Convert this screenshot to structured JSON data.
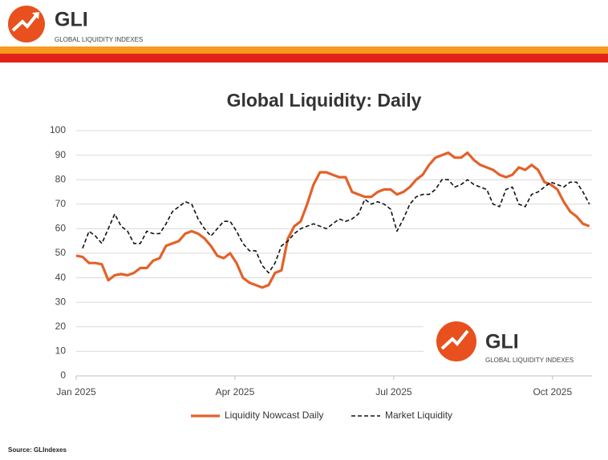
{
  "header": {
    "logo": "GLI",
    "tagline": "GLOBAL LIQUIDITY INDEXES"
  },
  "chart_data": {
    "type": "line",
    "title": "Global Liquidity: Daily",
    "xlim": [
      0,
      80.4
    ],
    "xticks": [
      {
        "value": 0,
        "label": "Jan 2025"
      },
      {
        "value": 24.75,
        "label": "Apr 2025"
      },
      {
        "value": 49.5,
        "label": "Jul 2025"
      },
      {
        "value": 74.25,
        "label": "Oct 2025"
      }
    ],
    "ylim": [
      0,
      100
    ],
    "yticks": [
      0,
      10,
      20,
      30,
      40,
      50,
      60,
      70,
      80,
      90,
      100
    ],
    "grid": true,
    "legend": "bottom",
    "series": [
      {
        "name": "Liquidity Nowcast Daily",
        "color": "#e2622a",
        "dash": false,
        "values": [
          49,
          48.5,
          46,
          46,
          45.5,
          39,
          41,
          41.5,
          41,
          42,
          44,
          44,
          47,
          48,
          53,
          54,
          55,
          58,
          59,
          58,
          56,
          53,
          49,
          48,
          50,
          46,
          40,
          38,
          37,
          36,
          37,
          42,
          43,
          56,
          61,
          63,
          70,
          78,
          83,
          83,
          82,
          81,
          81,
          75,
          74,
          73,
          73,
          75,
          76,
          76,
          74,
          75,
          77,
          80,
          82,
          86,
          89,
          90,
          91,
          89,
          89,
          91,
          88,
          86,
          85,
          84,
          82,
          81,
          82,
          85,
          84,
          86,
          84,
          79,
          78,
          76,
          71,
          67,
          65,
          62,
          61
        ]
      },
      {
        "name": "Market Liquidity",
        "color": "#111111",
        "dash": true,
        "values": [
          null,
          52,
          59,
          57,
          54,
          60,
          66,
          61,
          59,
          54,
          54,
          59,
          58,
          58,
          62,
          67,
          69,
          71,
          70,
          64,
          60,
          57,
          60,
          63,
          63,
          59,
          54,
          51,
          51,
          45,
          42,
          46,
          53,
          55,
          58,
          60,
          61,
          62,
          61,
          60,
          62,
          64,
          63,
          64,
          66,
          72,
          70,
          71,
          70,
          68,
          59,
          64,
          70,
          73,
          74,
          74,
          76,
          80,
          80,
          77,
          78,
          80,
          78,
          77,
          76,
          70,
          69,
          76,
          77,
          70,
          69,
          74,
          75,
          77,
          79,
          78,
          77,
          79,
          79,
          75,
          70
        ]
      }
    ]
  },
  "watermark": {
    "logo": "GLI",
    "tagline": "GLOBAL LIQUIDITY INDEXES"
  },
  "source": "Source: GLIndexes"
}
